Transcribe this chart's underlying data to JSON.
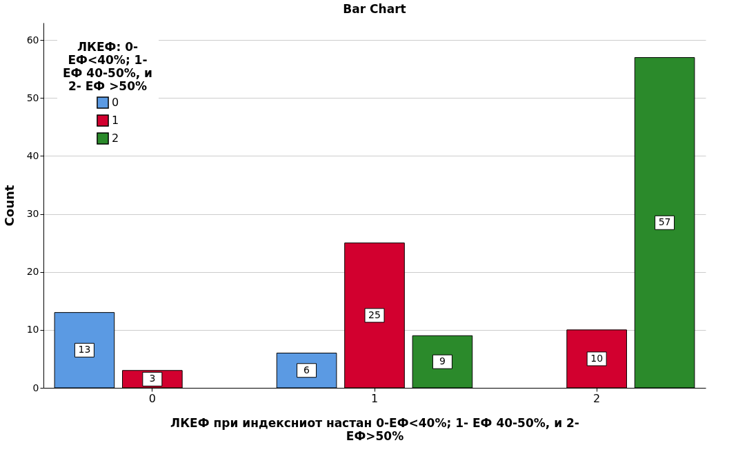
{
  "chart_data": {
    "type": "bar",
    "title": "Bar Chart",
    "xlabel": "ЛКЕФ при индексниот настан 0-ЕФ<40%; 1- ЕФ 40-50%, и 2- ЕФ>50%",
    "ylabel": "Count",
    "legend_title": "ЛКЕФ: 0- ЕФ<40%; 1- ЕФ 40-50%, и 2- ЕФ >50%",
    "categories": [
      "0",
      "1",
      "2"
    ],
    "series": [
      {
        "name": "0",
        "color": "#5b9ae3",
        "values": [
          13,
          6,
          null
        ]
      },
      {
        "name": "1",
        "color": "#d2002f",
        "values": [
          3,
          25,
          10
        ]
      },
      {
        "name": "2",
        "color": "#2b8a2b",
        "values": [
          null,
          9,
          57
        ]
      }
    ],
    "ylim": [
      0,
      63
    ],
    "yticks": [
      0,
      10,
      20,
      30,
      40,
      50,
      60
    ],
    "grid": "y",
    "legend": "top left",
    "data_labels": true
  }
}
